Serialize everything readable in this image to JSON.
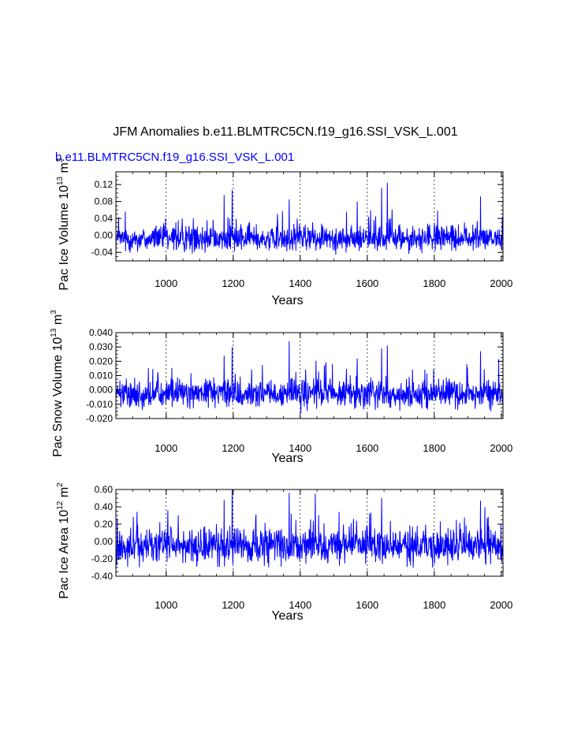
{
  "figure": {
    "title": "JFM Anomalies b.e11.BLMTRC5CN.f19_g16.SSI_VSK_L.001",
    "subtitle": "b.e11.BLMTRC5CN.f19_g16.SSI_VSK_L.001",
    "title_color": "#000000",
    "subtitle_color": "#0000ff",
    "line_color": "#0000ff"
  },
  "chart_data": [
    {
      "type": "line",
      "ylabel_main": "Pac Ice Volume 10",
      "ylabel_exp1": "13",
      "ylabel_unit": " m",
      "ylabel_exp2": "3",
      "xlabel": "Years",
      "xlim": [
        850,
        2005
      ],
      "ylim": [
        -0.06,
        0.15
      ],
      "yticks": [
        -0.04,
        0.0,
        0.04,
        0.08,
        0.12
      ],
      "ytick_labels": [
        "-0.04",
        "0.00",
        "0.04",
        "0.08",
        "0.12"
      ],
      "xticks": [
        1000,
        1200,
        1400,
        1600,
        1800,
        2000
      ],
      "xtick_labels": [
        "1000",
        "1200",
        "1400",
        "1600",
        "1800",
        "2000"
      ],
      "grid": "x dashed",
      "series": [
        {
          "x_start": 850,
          "x_end": 2005,
          "std": 0.018,
          "baseline": -0.008,
          "peaks": [
            [
              1197,
              0.107
            ],
            [
              1643,
              0.112
            ],
            [
              1660,
              0.124
            ],
            [
              1367,
              0.085
            ],
            [
              1173,
              0.095
            ],
            [
              1570,
              0.08
            ],
            [
              1938,
              0.092
            ]
          ]
        }
      ]
    },
    {
      "type": "line",
      "ylabel_main": "Pac Snow Volume 10",
      "ylabel_exp1": "13",
      "ylabel_unit": " m",
      "ylabel_exp2": "3",
      "xlabel": "Years",
      "xlim": [
        850,
        2005
      ],
      "ylim": [
        -0.02,
        0.04
      ],
      "yticks": [
        -0.02,
        -0.01,
        0.0,
        0.01,
        0.02,
        0.03,
        0.04
      ],
      "ytick_labels": [
        "-0.020",
        "-0.010",
        "0.000",
        "0.010",
        "0.020",
        "0.030",
        "0.040"
      ],
      "xticks": [
        1000,
        1200,
        1400,
        1600,
        1800,
        2000
      ],
      "xtick_labels": [
        "1000",
        "1200",
        "1400",
        "1600",
        "1800",
        "2000"
      ],
      "grid": "x dashed",
      "series": [
        {
          "x_start": 850,
          "x_end": 2005,
          "std": 0.006,
          "baseline": -0.003,
          "peaks": [
            [
              1197,
              0.03
            ],
            [
              1367,
              0.034
            ],
            [
              1643,
              0.029
            ],
            [
              1660,
              0.031
            ],
            [
              1173,
              0.024
            ],
            [
              1570,
              0.022
            ],
            [
              1938,
              0.027
            ]
          ]
        }
      ]
    },
    {
      "type": "line",
      "ylabel_main": "Pac Ice Area 10",
      "ylabel_exp1": "12",
      "ylabel_unit": " m",
      "ylabel_exp2": "2",
      "xlabel": "Years",
      "xlim": [
        850,
        2005
      ],
      "ylim": [
        -0.4,
        0.6
      ],
      "yticks": [
        -0.4,
        -0.2,
        0.0,
        0.2,
        0.4,
        0.6
      ],
      "ytick_labels": [
        "-0.40",
        "-0.20",
        "0.00",
        "0.20",
        "0.40",
        "0.60"
      ],
      "xticks": [
        1000,
        1200,
        1400,
        1600,
        1800,
        2000
      ],
      "xtick_labels": [
        "1000",
        "1200",
        "1400",
        "1600",
        "1800",
        "2000"
      ],
      "grid": "x dashed",
      "series": [
        {
          "x_start": 850,
          "x_end": 2005,
          "std": 0.12,
          "baseline": -0.05,
          "peaks": [
            [
              1197,
              0.6
            ],
            [
              1367,
              0.56
            ],
            [
              1445,
              0.55
            ],
            [
              1173,
              0.48
            ],
            [
              1643,
              0.5
            ],
            [
              1938,
              0.47
            ]
          ]
        }
      ]
    }
  ]
}
